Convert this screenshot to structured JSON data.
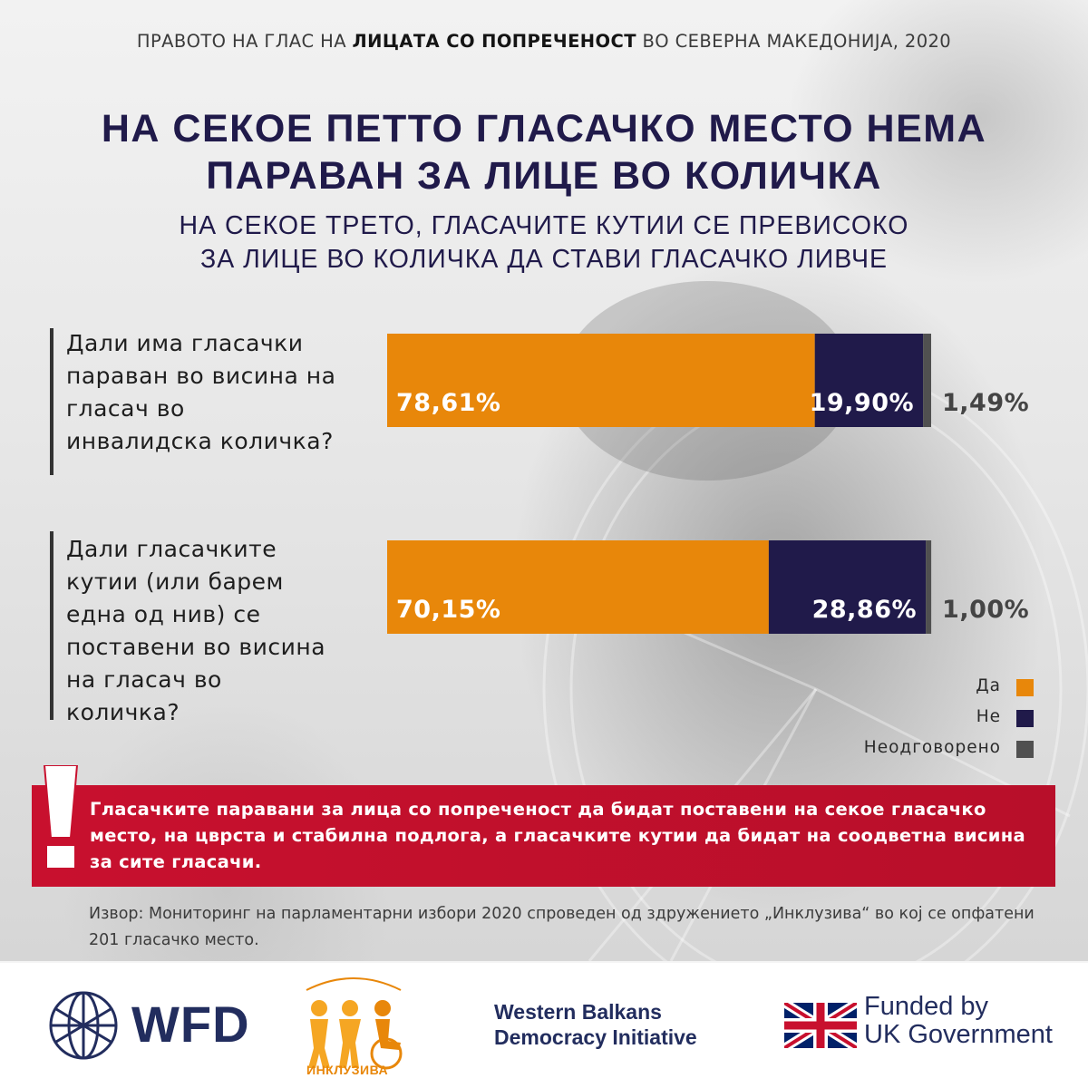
{
  "header": {
    "topline_pre": "ПРАВОТО НА ГЛАС НА ",
    "topline_bold": "ЛИЦАТА СО ПОПРЕЧЕНОСТ",
    "topline_post": " ВО СЕВЕРНА МАКЕДОНИЈА, 2020",
    "title_line1": "НА СЕКОЕ ПЕТТО ГЛАСАЧКО МЕСТО НЕМА",
    "title_line2": "ПАРАВАН ЗА ЛИЦЕ ВО КОЛИЧКА",
    "subtitle_line1": "НА СЕКОЕ ТРЕТО, ГЛАСАЧИТЕ КУТИИ СЕ ПРЕВИСОКО",
    "subtitle_line2": "ЗА ЛИЦЕ ВО КОЛИЧКА ДА СТАВИ ГЛАСАЧКО ЛИВЧЕ"
  },
  "colors": {
    "yes": "#e8870a",
    "no": "#201a4a",
    "unanswered": "#505050",
    "title": "#201a4a",
    "alert": "#c8102e"
  },
  "chart_data": {
    "type": "bar",
    "orientation": "horizontal",
    "stacked": true,
    "unit": "%",
    "categories": [
      "Дали има гласачки параван во висина на гласач во инвалидска количка?",
      "Дали гласачките кутии (или барем една од нив) се поставени во висина на гласач во количка?"
    ],
    "series": [
      {
        "name": "Да",
        "values": [
          78.61,
          70.15
        ],
        "labels": [
          "78,61%",
          "70,15%"
        ]
      },
      {
        "name": "Не",
        "values": [
          19.9,
          28.86
        ],
        "labels": [
          "19,90%",
          "28,86%"
        ]
      },
      {
        "name": "Неодговорено",
        "values": [
          1.49,
          1.0
        ],
        "labels": [
          "1,49%",
          "1,00%"
        ]
      }
    ],
    "xlim": [
      0,
      100
    ],
    "grid": false,
    "legend_position": "bottom-right"
  },
  "callout": {
    "mark": "!",
    "text": "Гласачките паравани за лица со попреченост да бидат поставени на секое гласачко место, на цврста и стабилна подлога, а гласачките кутии да бидат на соодветна висина за сите гласачи."
  },
  "source": "Извор: Мониторинг на парламентарни избори 2020 спроведен од здружението „Инклузива“ во кој се опфатени 201 гласачко место.",
  "footer": {
    "wfd": "WFD",
    "inkluziva": "ИНКЛУЗИВА",
    "wbdi_line1": "Western Balkans",
    "wbdi_line2": "Democracy Initiative",
    "uk_line1": "Funded by",
    "uk_line2": "UK Government"
  }
}
